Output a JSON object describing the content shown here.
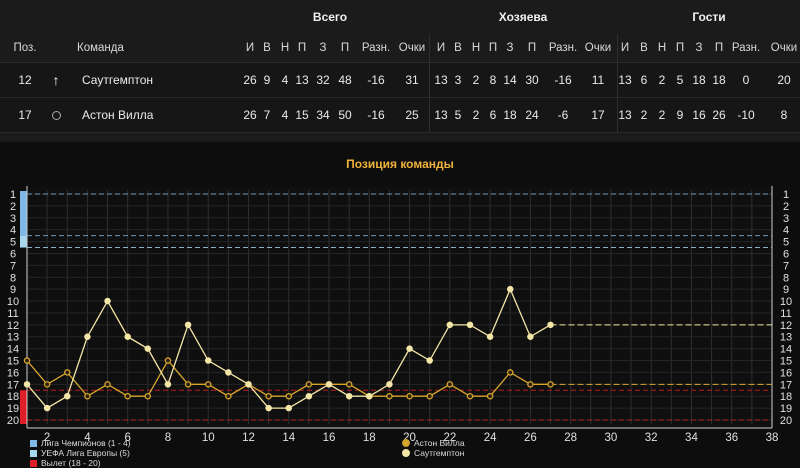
{
  "table": {
    "groups": {
      "total": "Всего",
      "home": "Хозяева",
      "away": "Гости"
    },
    "columns": {
      "pos": "Поз.",
      "team": "Команда",
      "stats": [
        "И",
        "В",
        "Н",
        "П",
        "З",
        "П",
        "Разн.",
        "Очки"
      ]
    },
    "rows": [
      {
        "pos": "12",
        "icon": "arrow-up-icon",
        "team": "Саутгемптон",
        "total": [
          "26",
          "9",
          "4",
          "13",
          "32",
          "48",
          "-16",
          "31"
        ],
        "home": [
          "13",
          "3",
          "2",
          "8",
          "14",
          "30",
          "-16",
          "11"
        ],
        "away": [
          "13",
          "6",
          "2",
          "5",
          "18",
          "18",
          "0",
          "20"
        ]
      },
      {
        "pos": "17",
        "icon": "circle-icon",
        "team": "Астон Вилла",
        "total": [
          "26",
          "7",
          "4",
          "15",
          "34",
          "50",
          "-16",
          "25"
        ],
        "home": [
          "13",
          "5",
          "2",
          "6",
          "18",
          "24",
          "-6",
          "17"
        ],
        "away": [
          "13",
          "2",
          "2",
          "9",
          "16",
          "26",
          "-10",
          "8"
        ]
      }
    ]
  },
  "chart_title": "Позиция команды",
  "chart_data": {
    "type": "line",
    "x_ticks": [
      2,
      4,
      6,
      8,
      10,
      12,
      14,
      16,
      18,
      20,
      22,
      24,
      26,
      28,
      30,
      32,
      34,
      36,
      38
    ],
    "x_range": [
      1,
      38
    ],
    "y_ticks": [
      1,
      2,
      3,
      4,
      5,
      6,
      7,
      8,
      9,
      10,
      11,
      12,
      13,
      14,
      15,
      16,
      17,
      18,
      19,
      20
    ],
    "y_range": [
      1,
      20
    ],
    "y_inverted": true,
    "zones": [
      {
        "name": "Лига Чемпионов (1 - 4)",
        "from": 1,
        "to": 4,
        "color": "#7fb8e6"
      },
      {
        "name": "УЕФА Лига Европы (5)",
        "from": 5,
        "to": 5,
        "color": "#a8d8f0"
      },
      {
        "name": "Вылет (18 - 20)",
        "from": 18,
        "to": 20,
        "color": "#e01e2a"
      }
    ],
    "series": [
      {
        "name": "Астон Вилла",
        "color": "#d9a62c",
        "values": [
          15,
          17,
          16,
          18,
          17,
          18,
          18,
          15,
          17,
          17,
          18,
          17,
          18,
          18,
          17,
          17,
          17,
          18,
          18,
          18,
          18,
          17,
          18,
          18,
          16,
          17,
          17
        ]
      },
      {
        "name": "Саутгемптон",
        "color": "#f3e6a6",
        "values": [
          17,
          19,
          18,
          13,
          10,
          13,
          14,
          17,
          12,
          15,
          16,
          17,
          19,
          19,
          18,
          17,
          18,
          18,
          17,
          14,
          15,
          12,
          12,
          13,
          9,
          13,
          12
        ]
      }
    ],
    "grid": true,
    "legend_position": "bottom"
  },
  "legend": {
    "cl": "Лига Чемпионов (1 - 4)",
    "el": "УЕФА Лига Европы (5)",
    "rel": "Вылет (18 - 20)",
    "s1": "Астон Вилла",
    "s2": "Саутгемптон"
  },
  "colors": {
    "accent": "#f0b33c",
    "background": "#0d0d0d"
  }
}
